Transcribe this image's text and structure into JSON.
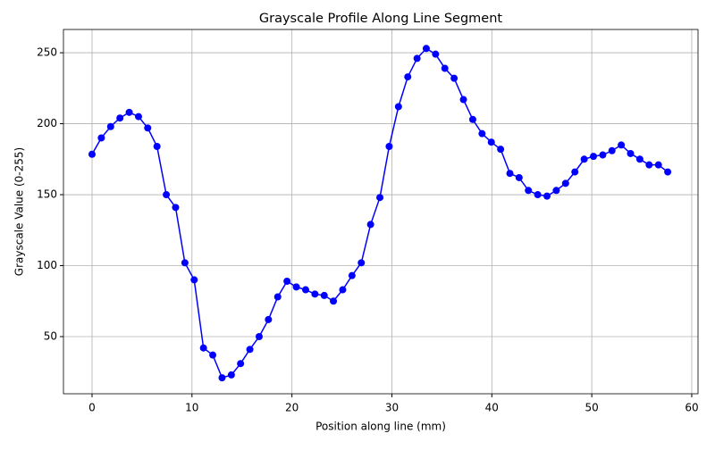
{
  "chart_data": {
    "type": "line",
    "title": "Grayscale Profile Along Line Segment",
    "xlabel": "Position along line (mm)",
    "ylabel": "Grayscale Value (0-255)",
    "x": [
      0,
      0.93,
      1.86,
      2.79,
      3.72,
      4.65,
      5.57,
      6.5,
      7.43,
      8.36,
      9.29,
      10.22,
      11.15,
      12.08,
      13.01,
      13.94,
      14.86,
      15.79,
      16.72,
      17.65,
      18.58,
      19.51,
      20.44,
      21.37,
      22.3,
      23.23,
      24.15,
      25.08,
      26.01,
      26.94,
      27.87,
      28.8,
      29.73,
      30.66,
      31.59,
      32.52,
      33.44,
      34.37,
      35.3,
      36.23,
      37.16,
      38.09,
      39.02,
      39.95,
      40.88,
      41.81,
      42.73,
      43.66,
      44.59,
      45.52,
      46.45,
      47.38,
      48.31,
      49.24,
      50.17,
      51.1,
      52.02,
      52.95,
      53.88,
      54.81,
      55.74,
      56.67,
      57.6
    ],
    "series": [
      {
        "color": "#0000ff",
        "values": [
          178.5,
          190,
          198,
          204,
          208,
          205,
          197,
          184,
          150,
          141,
          102,
          90,
          42,
          37,
          21,
          23,
          31,
          41,
          50,
          62,
          78,
          89,
          85,
          83,
          80,
          79,
          75,
          83,
          93,
          102,
          129,
          148,
          184,
          212,
          233,
          246,
          253,
          249,
          239,
          232,
          217,
          203,
          193,
          187,
          182,
          165,
          162,
          153,
          150,
          149,
          153,
          158,
          166,
          175,
          177,
          178,
          181,
          185,
          179,
          175,
          171,
          171,
          166
        ]
      }
    ],
    "xlim": [
      -2.86,
      60.63
    ],
    "ylim": [
      9.75,
      266.4
    ],
    "xticks": [
      0,
      10,
      20,
      30,
      40,
      50,
      60
    ],
    "yticks": [
      50,
      100,
      150,
      200,
      250
    ],
    "grid": true
  }
}
